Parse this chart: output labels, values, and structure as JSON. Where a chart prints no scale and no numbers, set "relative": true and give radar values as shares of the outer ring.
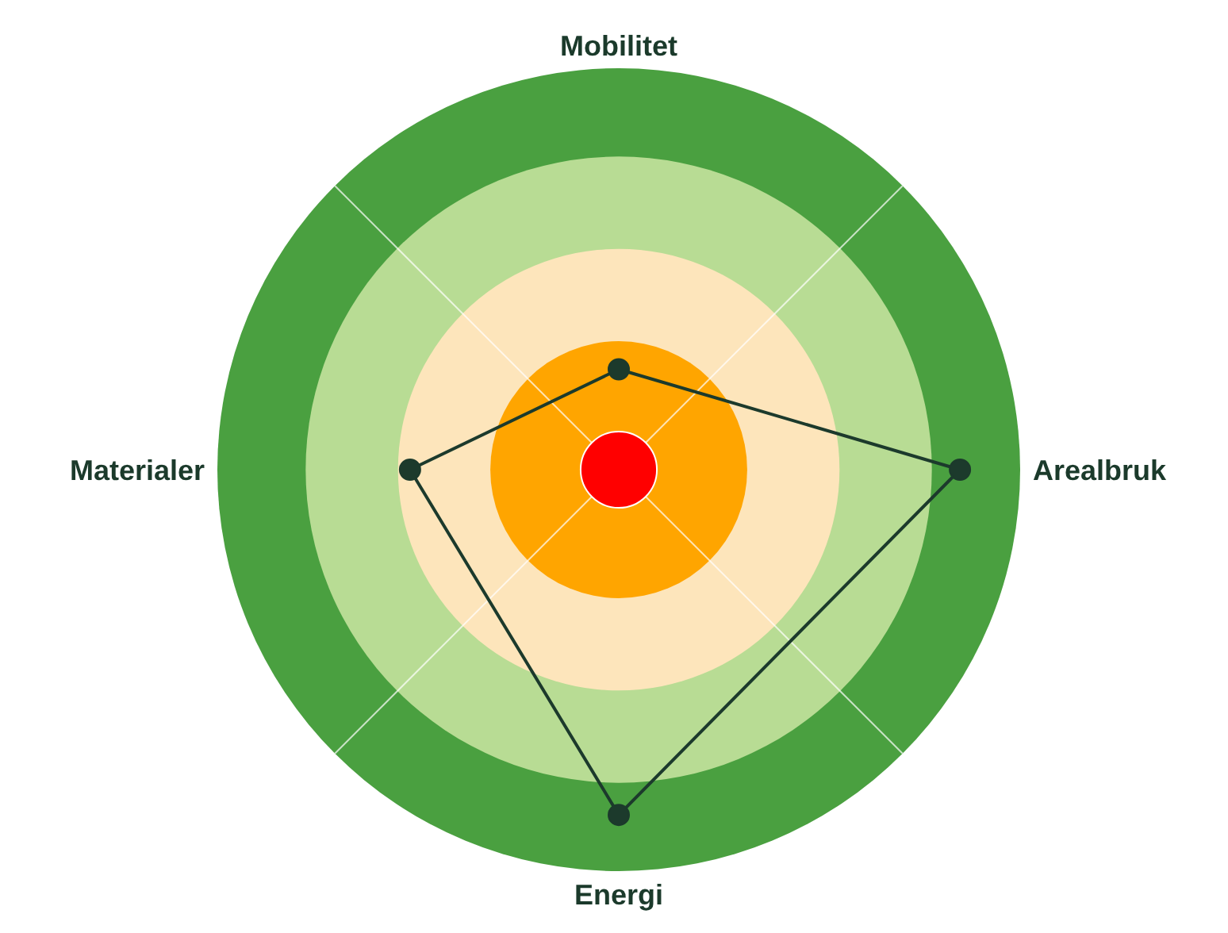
{
  "chart_data": {
    "type": "radar",
    "relative": true,
    "categories": [
      "Mobilitet",
      "Arealbruk",
      "Energi",
      "Materialer"
    ],
    "series": [
      {
        "color": "#1c3a2c",
        "values": [
          0.25,
          0.85,
          0.86,
          0.52
        ]
      }
    ],
    "marker": "circle",
    "grid": "x"
  }
}
